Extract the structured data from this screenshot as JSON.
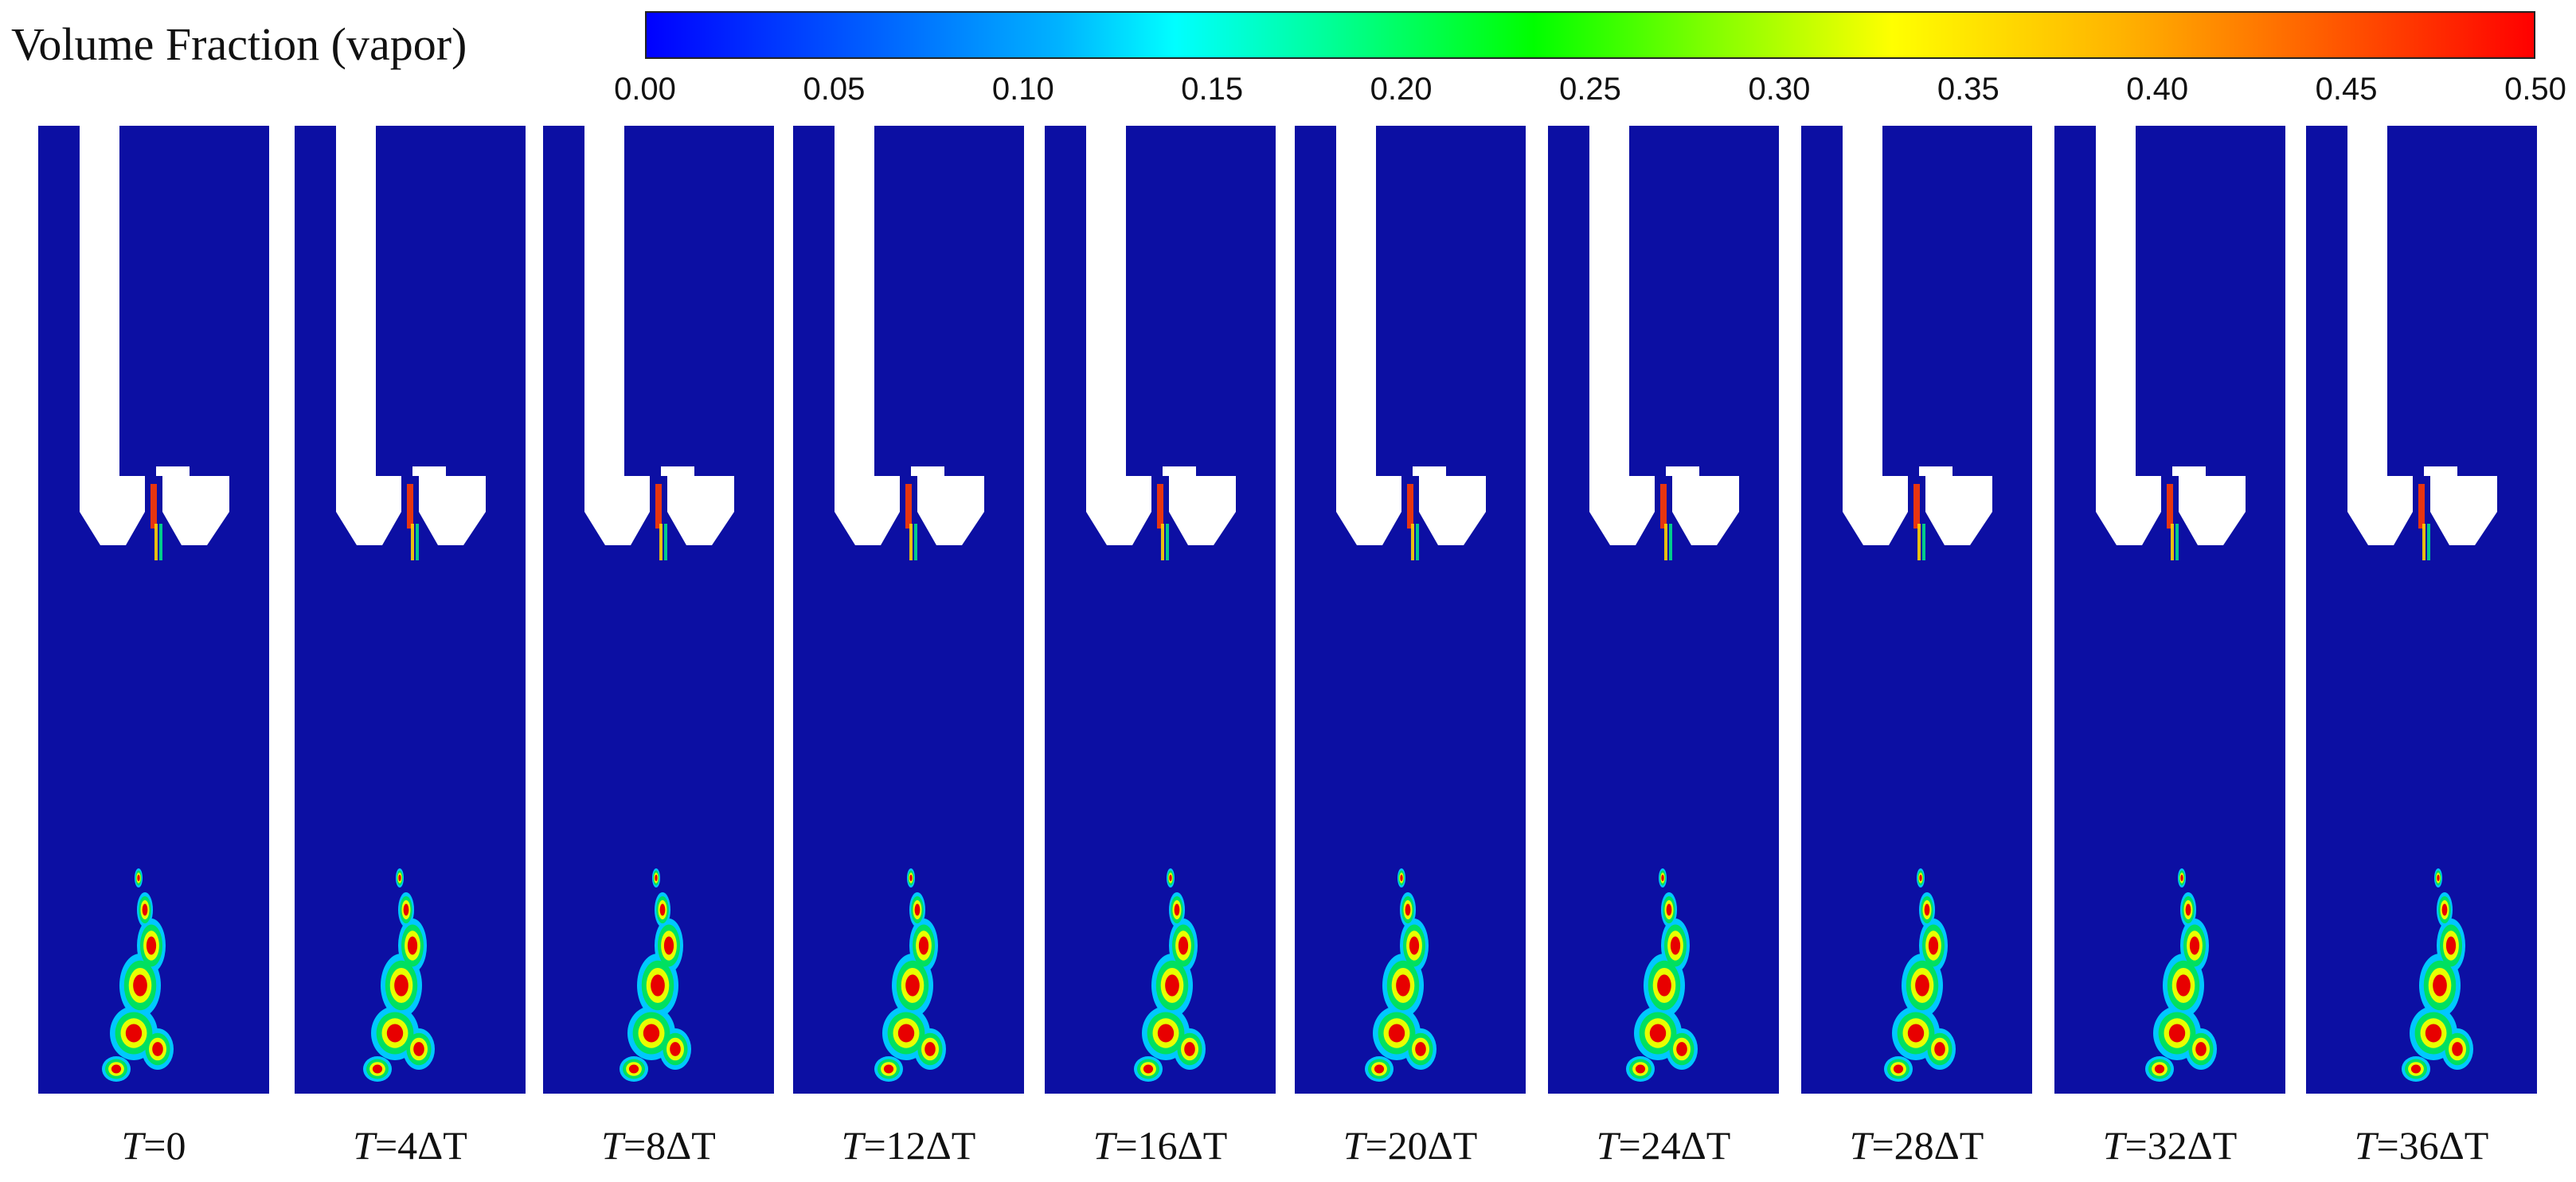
{
  "legend": {
    "title": "Volume Fraction (vapor)",
    "ticks": [
      "0.00",
      "0.05",
      "0.10",
      "0.15",
      "0.20",
      "0.25",
      "0.30",
      "0.35",
      "0.40",
      "0.45",
      "0.50"
    ],
    "range": [
      0.0,
      0.5
    ],
    "colormap": "rainbow (blue → cyan → green → yellow → red)"
  },
  "colors": {
    "liquid": "#0c0fa3",
    "background": "#ffffff"
  },
  "panels": [
    {
      "label_var": "T",
      "label_rest": "=0"
    },
    {
      "label_var": "T",
      "label_rest": "=4ΔT"
    },
    {
      "label_var": "T",
      "label_rest": "=8ΔT"
    },
    {
      "label_var": "T",
      "label_rest": "=12ΔT"
    },
    {
      "label_var": "T",
      "label_rest": "=16ΔT"
    },
    {
      "label_var": "T",
      "label_rest": "=20ΔT"
    },
    {
      "label_var": "T",
      "label_rest": "=24ΔT"
    },
    {
      "label_var": "T",
      "label_rest": "=28ΔT"
    },
    {
      "label_var": "T",
      "label_rest": "=32ΔT"
    },
    {
      "label_var": "T",
      "label_rest": "=36ΔT"
    }
  ]
}
